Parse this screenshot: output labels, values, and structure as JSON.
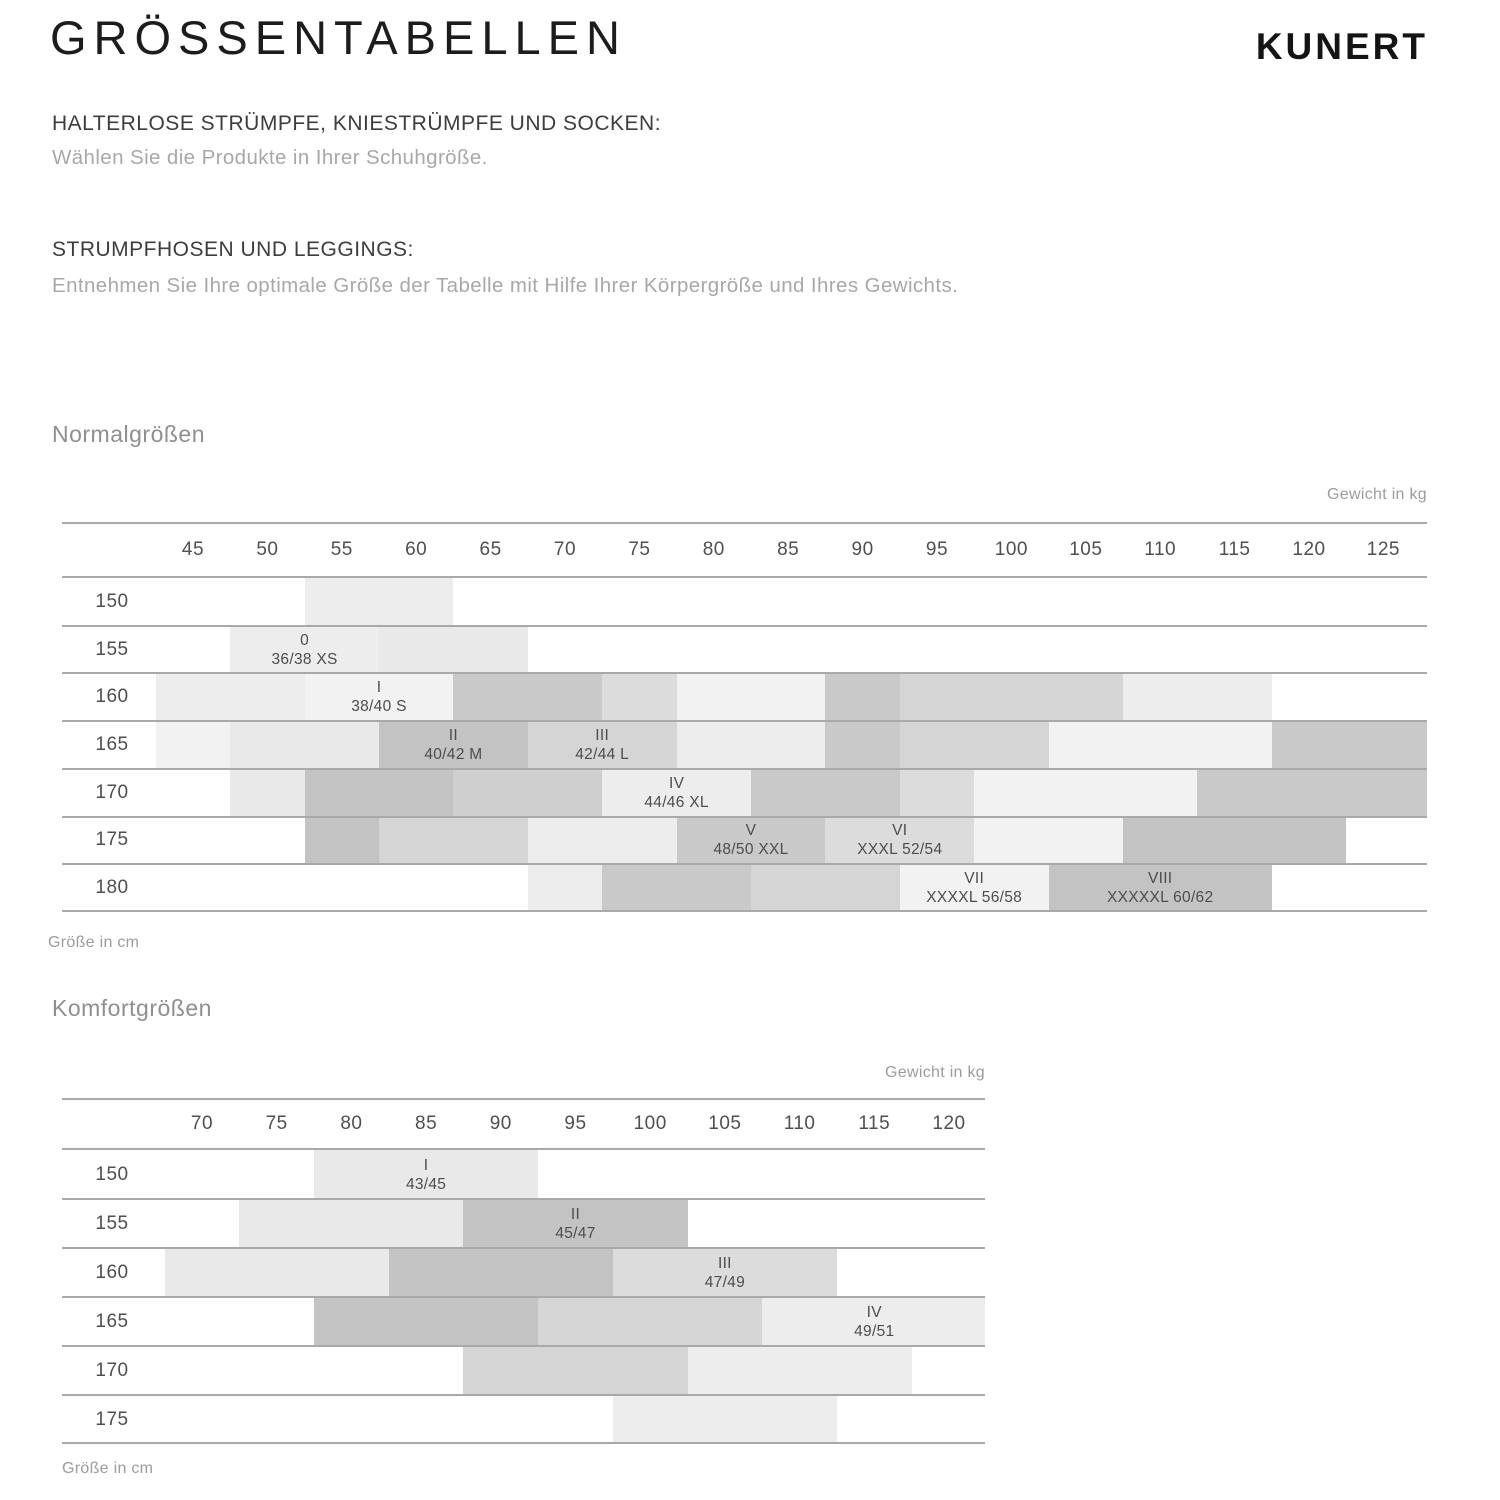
{
  "header": {
    "title": "GRÖSSENTABELLEN",
    "brand_logo": "KUNERT"
  },
  "sections": [
    {
      "heading": "HALTERLOSE STRÜMPFE, KNIESTRÜMPFE UND SOCKEN:",
      "body": "Wählen Sie die Produkte in Ihrer Schuhgröße."
    },
    {
      "heading": "STRUMPFHOSEN UND LEGGINGS:",
      "body": "Entnehmen Sie Ihre optimale Größe der Tabelle mit Hilfe Ihrer Körpergröße und Ihres Gewichts."
    }
  ],
  "shade_palette": {
    "f2": "#f2f2f2",
    "ee": "#ededed",
    "e9": "#e9e9e9",
    "dc": "#dcdcdc",
    "d6": "#d5d5d5",
    "cf": "#cfcfcf",
    "c9": "#c9c9c9",
    "c3": "#c3c3c3"
  },
  "chart_data": [
    {
      "type": "heatmap",
      "title": "Normalgrößen",
      "x_axis_label": "Gewicht in kg",
      "y_axis_label": "Größe in cm",
      "x_ticks": [
        45,
        50,
        55,
        60,
        65,
        70,
        75,
        80,
        85,
        90,
        95,
        100,
        105,
        110,
        115,
        120,
        125
      ],
      "x_range": [
        36.2,
        128.1
      ],
      "y_rows": [
        150,
        155,
        160,
        165,
        170,
        175,
        180
      ],
      "sizes": [
        {
          "size": "0",
          "fit": "36/38 XS",
          "label_row": 155,
          "label_weight": 52.5
        },
        {
          "size": "I",
          "fit": "38/40 S",
          "label_row": 160,
          "label_weight": 57.5
        },
        {
          "size": "II",
          "fit": "40/42 M",
          "label_row": 165,
          "label_weight": 62.5
        },
        {
          "size": "III",
          "fit": "42/44 L",
          "label_row": 165,
          "label_weight": 72.5
        },
        {
          "size": "IV",
          "fit": "44/46 XL",
          "label_row": 170,
          "label_weight": 77.5
        },
        {
          "size": "V",
          "fit": "48/50 XXL",
          "label_row": 175,
          "label_weight": 82.5
        },
        {
          "size": "VI",
          "fit": "XXXL 52/54",
          "label_row": 175,
          "label_weight": 92.5
        },
        {
          "size": "VII",
          "fit": "XXXXL 56/58",
          "label_row": 180,
          "label_weight": 97.5
        },
        {
          "size": "VIII",
          "fit": "XXXXXL 60/62",
          "label_row": 180,
          "label_weight": 110
        }
      ],
      "bands": [
        {
          "row": 150,
          "from": 52.5,
          "to": 62.5,
          "shade": "ee"
        },
        {
          "row": 155,
          "from": 47.5,
          "to": 57.5,
          "shade": "ee"
        },
        {
          "row": 155,
          "from": 57.5,
          "to": 67.5,
          "shade": "e9"
        },
        {
          "row": 160,
          "from": 42.5,
          "to": 52.5,
          "shade": "ee"
        },
        {
          "row": 160,
          "from": 52.5,
          "to": 62.5,
          "shade": "f2"
        },
        {
          "row": 160,
          "from": 62.5,
          "to": 72.5,
          "shade": "c9"
        },
        {
          "row": 160,
          "from": 72.5,
          "to": 77.5,
          "shade": "dc"
        },
        {
          "row": 160,
          "from": 77.5,
          "to": 87.5,
          "shade": "f2"
        },
        {
          "row": 160,
          "from": 87.5,
          "to": 92.5,
          "shade": "c9"
        },
        {
          "row": 160,
          "from": 92.5,
          "to": 107.5,
          "shade": "d6"
        },
        {
          "row": 160,
          "from": 107.5,
          "to": 117.5,
          "shade": "ee"
        },
        {
          "row": 165,
          "from": 42.5,
          "to": 47.5,
          "shade": "f2"
        },
        {
          "row": 165,
          "from": 47.5,
          "to": 57.5,
          "shade": "e9"
        },
        {
          "row": 165,
          "from": 57.5,
          "to": 67.5,
          "shade": "c3"
        },
        {
          "row": 165,
          "from": 67.5,
          "to": 77.5,
          "shade": "d6"
        },
        {
          "row": 165,
          "from": 77.5,
          "to": 87.5,
          "shade": "ee"
        },
        {
          "row": 165,
          "from": 87.5,
          "to": 92.5,
          "shade": "c9"
        },
        {
          "row": 165,
          "from": 92.5,
          "to": 102.5,
          "shade": "d6"
        },
        {
          "row": 165,
          "from": 102.5,
          "to": 117.5,
          "shade": "f2"
        },
        {
          "row": 165,
          "from": 117.5,
          "to": 128.1,
          "shade": "c9"
        },
        {
          "row": 170,
          "from": 47.5,
          "to": 52.5,
          "shade": "e9"
        },
        {
          "row": 170,
          "from": 52.5,
          "to": 62.5,
          "shade": "c3"
        },
        {
          "row": 170,
          "from": 62.5,
          "to": 72.5,
          "shade": "cf"
        },
        {
          "row": 170,
          "from": 72.5,
          "to": 82.5,
          "shade": "ee"
        },
        {
          "row": 170,
          "from": 82.5,
          "to": 92.5,
          "shade": "c9"
        },
        {
          "row": 170,
          "from": 92.5,
          "to": 97.5,
          "shade": "dc"
        },
        {
          "row": 170,
          "from": 97.5,
          "to": 112.5,
          "shade": "f2"
        },
        {
          "row": 170,
          "from": 112.5,
          "to": 128.1,
          "shade": "c9"
        },
        {
          "row": 175,
          "from": 52.5,
          "to": 57.5,
          "shade": "c3"
        },
        {
          "row": 175,
          "from": 57.5,
          "to": 67.5,
          "shade": "d6"
        },
        {
          "row": 175,
          "from": 67.5,
          "to": 77.5,
          "shade": "ee"
        },
        {
          "row": 175,
          "from": 77.5,
          "to": 87.5,
          "shade": "c9"
        },
        {
          "row": 175,
          "from": 87.5,
          "to": 97.5,
          "shade": "dc"
        },
        {
          "row": 175,
          "from": 97.5,
          "to": 107.5,
          "shade": "f2"
        },
        {
          "row": 175,
          "from": 107.5,
          "to": 122.5,
          "shade": "c3"
        },
        {
          "row": 180,
          "from": 67.5,
          "to": 72.5,
          "shade": "ee"
        },
        {
          "row": 180,
          "from": 72.5,
          "to": 82.5,
          "shade": "c9"
        },
        {
          "row": 180,
          "from": 82.5,
          "to": 92.5,
          "shade": "d6"
        },
        {
          "row": 180,
          "from": 92.5,
          "to": 102.5,
          "shade": "f2"
        },
        {
          "row": 180,
          "from": 102.5,
          "to": 117.5,
          "shade": "c3"
        }
      ]
    },
    {
      "type": "heatmap",
      "title": "Komfortgrößen",
      "x_axis_label": "Gewicht in kg",
      "y_axis_label": "Größe in cm",
      "x_ticks": [
        70,
        75,
        80,
        85,
        90,
        95,
        100,
        105,
        110,
        115,
        120
      ],
      "x_range": [
        60.6,
        122.4
      ],
      "y_rows": [
        150,
        155,
        160,
        165,
        170,
        175
      ],
      "sizes": [
        {
          "size": "I",
          "fit": "43/45",
          "label_row": 150,
          "label_weight": 85
        },
        {
          "size": "II",
          "fit": "45/47",
          "label_row": 155,
          "label_weight": 95
        },
        {
          "size": "III",
          "fit": "47/49",
          "label_row": 160,
          "label_weight": 105
        },
        {
          "size": "IV",
          "fit": "49/51",
          "label_row": 165,
          "label_weight": 115
        }
      ],
      "bands": [
        {
          "row": 150,
          "from": 77.5,
          "to": 92.5,
          "shade": "e9"
        },
        {
          "row": 155,
          "from": 72.5,
          "to": 87.5,
          "shade": "e9"
        },
        {
          "row": 155,
          "from": 87.5,
          "to": 102.5,
          "shade": "c3"
        },
        {
          "row": 160,
          "from": 67.5,
          "to": 82.5,
          "shade": "e9"
        },
        {
          "row": 160,
          "from": 82.5,
          "to": 97.5,
          "shade": "c3"
        },
        {
          "row": 160,
          "from": 97.5,
          "to": 112.5,
          "shade": "dc"
        },
        {
          "row": 165,
          "from": 77.5,
          "to": 92.5,
          "shade": "c3"
        },
        {
          "row": 165,
          "from": 92.5,
          "to": 107.5,
          "shade": "d6"
        },
        {
          "row": 165,
          "from": 107.5,
          "to": 122.5,
          "shade": "ee"
        },
        {
          "row": 170,
          "from": 87.5,
          "to": 102.5,
          "shade": "d6"
        },
        {
          "row": 170,
          "from": 102.5,
          "to": 117.5,
          "shade": "ee"
        },
        {
          "row": 175,
          "from": 97.5,
          "to": 112.5,
          "shade": "ee"
        }
      ]
    }
  ]
}
